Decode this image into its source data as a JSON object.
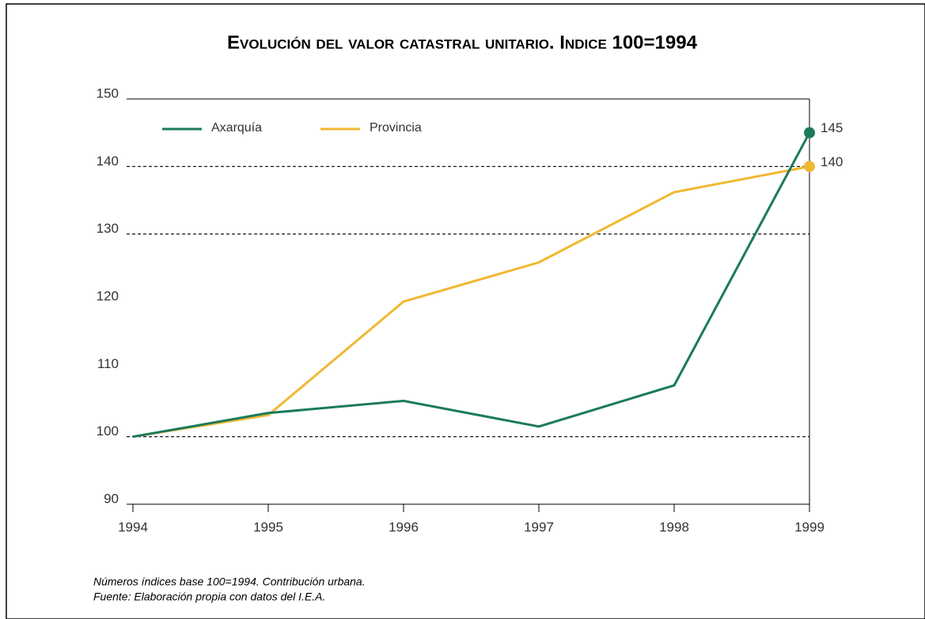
{
  "chart_data": {
    "type": "line",
    "title": "Evolución del valor catastral unitario. Indice 100=1994",
    "categories": [
      "1994",
      "1995",
      "1996",
      "1997",
      "1998",
      "1999"
    ],
    "series": [
      {
        "name": "Axarquía",
        "color": "#1b7a5c",
        "values": [
          100,
          103.5,
          105.3,
          101.5,
          107.6,
          145
        ]
      },
      {
        "name": "Provincia",
        "color": "#f0b832",
        "values": [
          100,
          103.2,
          120,
          125.8,
          136.2,
          140
        ]
      }
    ],
    "ylim": [
      90,
      150
    ],
    "yticks": [
      90,
      100,
      110,
      120,
      130,
      140,
      150
    ],
    "grid_values": [
      100,
      130,
      140
    ],
    "legend": "top-left",
    "notes": [
      "Números índices base 100=1994. Contribución urbana.",
      "Fuente: Elaboración propia con datos del I.E.A."
    ]
  }
}
